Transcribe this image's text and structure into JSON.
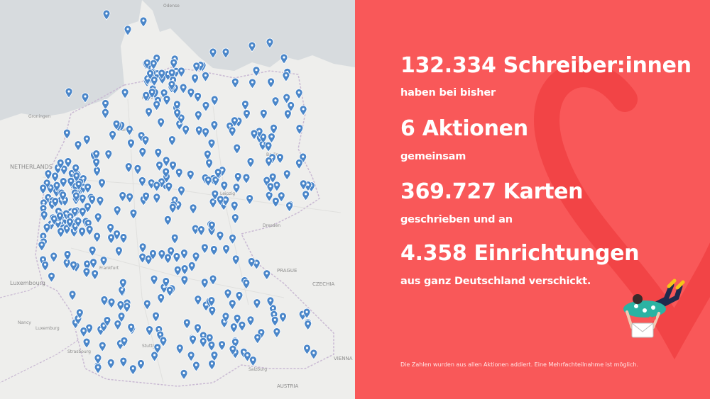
{
  "headline": {
    "writers": "132.334 Schreiber:innen",
    "line1": "haben bei bisher",
    "actions": "6 Aktionen",
    "line2": "gemeinsam",
    "cards": "369.727 Karten",
    "line3": "geschrieben und an",
    "institutions": "4.358 Einrichtungen",
    "line4": "aus ganz Deutschland verschickt."
  },
  "footnote": "Die Zahlen wurden aus allen Aktionen addiert. Eine Mehrfachteilnahme ist möglich.",
  "map": {
    "labels": [
      "NETHERLANDS",
      "Luxembourg",
      "PRAGUE",
      "CZECHIA",
      "VIENNA",
      "AUSTRIA",
      "Odense",
      "Groningen",
      "Münster",
      "Hamburg",
      "Berlin",
      "Dresden",
      "Frankfurt",
      "Stuttgart",
      "Strasbourg",
      "Nancy",
      "Salzburg",
      "Luxemburg",
      "Bremen",
      "Leipzig"
    ],
    "pin_color": "#4a86c9"
  },
  "colors": {
    "panel": "#f95859",
    "heart_stroke": "#f24446",
    "map_bg": "#eeeeec",
    "water": "#d7dbde",
    "pin": "#4a86c9"
  }
}
